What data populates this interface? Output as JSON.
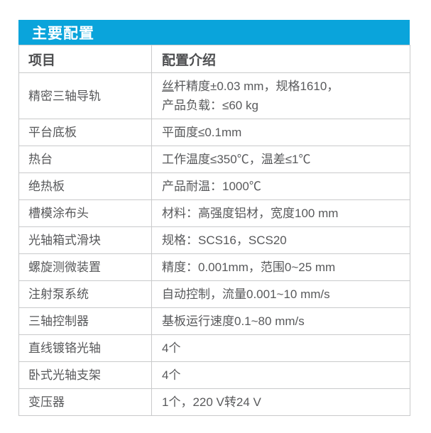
{
  "header": {
    "title": "主要配置",
    "accent_color": "#0aa4db"
  },
  "table": {
    "columns": [
      "项目",
      "配置介绍"
    ],
    "rows": [
      {
        "item": "精密三轴导轨",
        "desc": [
          [
            {
              "t": "丝",
              "u": true
            },
            {
              "t": "杆精度±0.03 mm，规格1610，"
            }
          ],
          [
            {
              "t": "产品负载：≤60 kg"
            }
          ]
        ]
      },
      {
        "item": "平台底板",
        "desc": [
          [
            {
              "t": "平面度≤0.1mm"
            }
          ]
        ]
      },
      {
        "item": "热台",
        "desc": [
          [
            {
              "t": "工作温度≤350℃，温差≤1℃"
            }
          ]
        ]
      },
      {
        "item": "绝热板",
        "desc": [
          [
            {
              "t": "产品耐温：1000℃"
            }
          ]
        ]
      },
      {
        "item": "槽模涂布头",
        "desc": [
          [
            {
              "t": "材料：高强度铝材，宽度100 mm"
            }
          ]
        ]
      },
      {
        "item": "光轴箱式滑块",
        "desc": [
          [
            {
              "t": "规格：SCS16，SCS20"
            }
          ]
        ]
      },
      {
        "item": "螺旋测微装置",
        "desc": [
          [
            {
              "t": "精度：0.001mm，范围0~25 mm"
            }
          ]
        ]
      },
      {
        "item": "注射泵系统",
        "desc": [
          [
            {
              "t": "自动控制，流量0.001~10 mm/s"
            }
          ]
        ]
      },
      {
        "item": "三轴控制器",
        "desc": [
          [
            {
              "t": "基板运行速度0.1~80 mm/s"
            }
          ]
        ]
      },
      {
        "item": "直线镀铬光轴",
        "desc": [
          [
            {
              "t": "4个"
            }
          ]
        ]
      },
      {
        "item": "卧式光轴支架",
        "desc": [
          [
            {
              "t": "4个"
            }
          ]
        ]
      },
      {
        "item": "变压器",
        "desc": [
          [
            {
              "t": "1个，220 V转24 V"
            }
          ]
        ]
      }
    ]
  },
  "colors": {
    "accent": "#0aa4db",
    "header_text": "#ffffff",
    "body_text": "#58595b",
    "column_header_text": "#4d4e50",
    "border": "#c9cacb",
    "background": "#ffffff"
  }
}
